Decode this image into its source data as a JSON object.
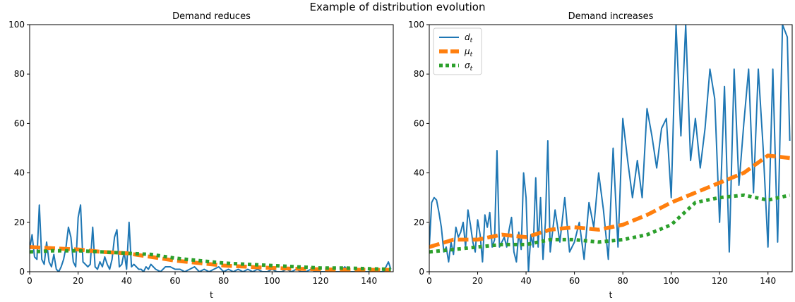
{
  "figure": {
    "suptitle": "Example of distribution evolution"
  },
  "colors": {
    "d": "#1f77b4",
    "mu": "#ff7f0e",
    "sigma": "#2ca02c"
  },
  "chart_data": [
    {
      "type": "line",
      "title": "Demand reduces",
      "xlabel": "t",
      "ylabel": "",
      "xlim": [
        0,
        150
      ],
      "ylim": [
        0,
        100
      ],
      "xticks": [
        0,
        20,
        40,
        60,
        80,
        100,
        120,
        140
      ],
      "yticks": [
        0,
        20,
        40,
        60,
        80,
        100
      ],
      "grid": false,
      "legend": null,
      "series": [
        {
          "name": "d",
          "style": "solid",
          "x": [
            0,
            1,
            2,
            3,
            4,
            5,
            6,
            7,
            8,
            9,
            10,
            11,
            12,
            13,
            14,
            15,
            16,
            17,
            18,
            19,
            20,
            21,
            22,
            23,
            24,
            25,
            26,
            27,
            28,
            29,
            30,
            31,
            32,
            33,
            34,
            35,
            36,
            37,
            38,
            39,
            40,
            41,
            42,
            43,
            44,
            45,
            46,
            47,
            48,
            49,
            50,
            52,
            54,
            56,
            58,
            60,
            62,
            64,
            66,
            68,
            70,
            72,
            74,
            76,
            78,
            80,
            82,
            84,
            86,
            88,
            90,
            92,
            94,
            96,
            98,
            100,
            102,
            104,
            106,
            108,
            110,
            112,
            114,
            116,
            118,
            120,
            122,
            124,
            126,
            128,
            130,
            132,
            134,
            136,
            138,
            140,
            142,
            144,
            146,
            148,
            149
          ],
          "y": [
            9,
            15,
            6,
            5,
            27,
            5,
            3,
            12,
            4,
            2,
            7,
            1,
            0,
            2,
            5,
            10,
            18,
            14,
            4,
            2,
            22,
            27,
            4,
            3,
            2,
            3,
            18,
            2,
            1,
            4,
            2,
            6,
            3,
            1,
            5,
            14,
            17,
            2,
            3,
            8,
            1,
            20,
            2,
            3,
            2,
            1,
            1,
            0,
            2,
            1,
            3,
            1,
            0,
            2,
            2,
            1,
            1,
            0,
            1,
            2,
            0,
            1,
            0,
            1,
            2,
            0,
            1,
            0,
            1,
            0,
            1,
            0,
            1,
            0,
            0,
            1,
            0,
            0,
            1,
            0,
            1,
            0,
            0,
            1,
            0,
            0,
            0,
            1,
            0,
            0,
            2,
            0,
            0,
            1,
            0,
            0,
            1,
            0,
            0,
            4,
            1
          ]
        },
        {
          "name": "mu",
          "style": "dashed",
          "x": [
            0,
            10,
            20,
            30,
            40,
            50,
            60,
            70,
            80,
            90,
            100,
            110,
            120,
            130,
            140,
            149
          ],
          "y": [
            10,
            9.5,
            9,
            8,
            7.5,
            6,
            4.5,
            3.5,
            2.5,
            2,
            1.5,
            1.2,
            1,
            0.8,
            0.8,
            0.7
          ]
        },
        {
          "name": "sigma",
          "style": "dotted",
          "x": [
            0,
            10,
            20,
            30,
            40,
            50,
            60,
            70,
            80,
            90,
            100,
            110,
            120,
            130,
            140,
            149
          ],
          "y": [
            8,
            8.5,
            8.5,
            8,
            7.5,
            7,
            5.5,
            4.5,
            3.5,
            3,
            2.5,
            2,
            1.5,
            1.5,
            1.2,
            1
          ]
        }
      ]
    },
    {
      "type": "line",
      "title": "Demand increases",
      "xlabel": "t",
      "ylabel": "",
      "xlim": [
        0,
        150
      ],
      "ylim": [
        0,
        100
      ],
      "xticks": [
        0,
        20,
        40,
        60,
        80,
        100,
        120,
        140
      ],
      "yticks": [
        0,
        20,
        40,
        60,
        80,
        100
      ],
      "grid": false,
      "legend": "top-left",
      "series": [
        {
          "name": "d",
          "label_main": "d",
          "label_sub": "t",
          "style": "solid",
          "x": [
            0,
            1,
            2,
            3,
            4,
            5,
            6,
            7,
            8,
            9,
            10,
            11,
            12,
            13,
            14,
            15,
            16,
            17,
            18,
            19,
            20,
            21,
            22,
            23,
            24,
            25,
            26,
            27,
            28,
            29,
            30,
            31,
            32,
            33,
            34,
            35,
            36,
            37,
            38,
            39,
            40,
            41,
            42,
            43,
            44,
            45,
            46,
            47,
            48,
            49,
            50,
            52,
            54,
            56,
            58,
            60,
            62,
            64,
            66,
            68,
            70,
            72,
            74,
            76,
            78,
            80,
            82,
            84,
            86,
            88,
            90,
            92,
            94,
            96,
            98,
            100,
            102,
            104,
            106,
            108,
            110,
            112,
            114,
            116,
            118,
            120,
            122,
            124,
            126,
            128,
            130,
            132,
            134,
            136,
            138,
            140,
            142,
            144,
            146,
            148,
            149
          ],
          "y": [
            10,
            28,
            30,
            29,
            24,
            18,
            8,
            10,
            4,
            12,
            7,
            18,
            14,
            16,
            20,
            10,
            25,
            19,
            12,
            8,
            21,
            15,
            4,
            23,
            18,
            24,
            10,
            13,
            49,
            10,
            12,
            14,
            10,
            17,
            22,
            8,
            4,
            16,
            9,
            40,
            30,
            0,
            15,
            10,
            38,
            10,
            30,
            5,
            20,
            53,
            8,
            25,
            12,
            30,
            8,
            12,
            20,
            5,
            28,
            18,
            40,
            25,
            5,
            50,
            10,
            62,
            45,
            30,
            45,
            30,
            66,
            55,
            42,
            58,
            62,
            30,
            100,
            55,
            100,
            45,
            62,
            42,
            58,
            82,
            70,
            20,
            75,
            8,
            82,
            35,
            60,
            82,
            32,
            82,
            50,
            10,
            82,
            12,
            100,
            95,
            53
          ]
        },
        {
          "name": "mu",
          "label_main": "μ",
          "label_sub": "t",
          "style": "dashed",
          "x": [
            0,
            10,
            20,
            30,
            40,
            50,
            60,
            70,
            80,
            90,
            100,
            110,
            120,
            130,
            140,
            149
          ],
          "y": [
            10,
            13,
            13,
            15,
            14,
            17,
            18,
            17,
            19,
            23,
            28,
            32,
            36,
            40,
            47,
            46
          ]
        },
        {
          "name": "sigma",
          "label_main": "σ",
          "label_sub": "t",
          "style": "dotted",
          "x": [
            0,
            10,
            20,
            30,
            40,
            50,
            60,
            70,
            80,
            90,
            100,
            110,
            120,
            130,
            140,
            149
          ],
          "y": [
            8,
            9,
            10,
            11,
            11,
            13,
            13,
            12,
            13,
            15,
            19,
            28,
            30,
            31,
            29,
            31
          ]
        }
      ]
    }
  ]
}
